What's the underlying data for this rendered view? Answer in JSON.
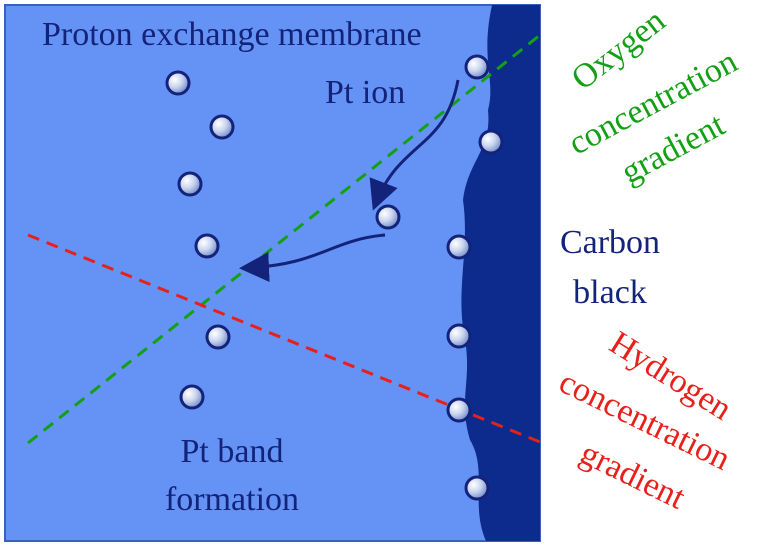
{
  "membrane": {
    "title": "Proton exchange membrane",
    "pt_ion": "Pt ion",
    "pt_band": [
      "Pt band",
      "formation"
    ]
  },
  "carbon_black": [
    "Carbon",
    "black"
  ],
  "oxygen_gradient": [
    "Oxygen",
    "concentration",
    "gradient"
  ],
  "hydrogen_gradient": [
    "Hydrogen",
    "concentration",
    "gradient"
  ]
}
